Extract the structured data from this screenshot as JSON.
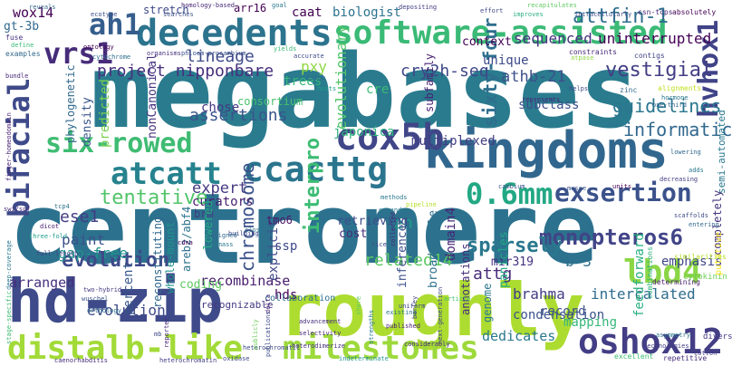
{
  "words": [
    {
      "text": "megabases",
      "color": "#2a7b8e"
    },
    {
      "text": "centromere",
      "color": "#2c728e"
    },
    {
      "text": "roughly",
      "color": "#addc30"
    },
    {
      "text": "hd-zip",
      "color": "#3e4a89"
    },
    {
      "text": "kingdoms",
      "color": "#31678e"
    },
    {
      "text": "decedents",
      "color": "#2c738e"
    },
    {
      "text": "software-assisted",
      "color": "#3aba76"
    },
    {
      "text": "six-rowed",
      "color": "#3fbc73"
    },
    {
      "text": "bifacial",
      "color": "#3e4a89"
    },
    {
      "text": "milestones",
      "color": "#9dd93b"
    },
    {
      "text": "distalb-like",
      "color": "#a2da37"
    },
    {
      "text": "oshox12",
      "color": "#433e85"
    },
    {
      "text": "cox5b",
      "color": "#404688"
    },
    {
      "text": "atcatt",
      "color": "#26828e"
    },
    {
      "text": "ccacttg",
      "color": "#2b758e"
    },
    {
      "text": "vrs1",
      "color": "#472c7a"
    },
    {
      "text": "ah1",
      "color": "#355e8d"
    },
    {
      "text": "lbd4",
      "color": "#8bd646"
    },
    {
      "text": "0.6mm",
      "color": "#22a884"
    },
    {
      "text": "exsertion",
      "color": "#3b528b"
    },
    {
      "text": "hvhox1",
      "color": "#404387"
    },
    {
      "text": "monopteros6",
      "color": "#414487"
    },
    {
      "text": "sparsely",
      "color": "#2a788e"
    },
    {
      "text": "tentative",
      "color": "#52c569"
    },
    {
      "text": "interpro",
      "color": "#3dbc74"
    },
    {
      "text": "evolution",
      "color": "#3e4989"
    },
    {
      "text": "sixty-four",
      "color": "#2e6f8e"
    },
    {
      "text": "chromosome",
      "color": "#3b528b"
    },
    {
      "text": "uninterrupted",
      "color": "#440154"
    },
    {
      "text": "sequenced",
      "color": "#46337f"
    },
    {
      "text": "attfin-1",
      "color": "#2e6d8e"
    },
    {
      "text": "lineage",
      "color": "#3e4a89"
    },
    {
      "text": "project nipponbare",
      "color": "#472f7d"
    },
    {
      "text": "cry2h-seq",
      "color": "#3f4788"
    },
    {
      "text": "athb-21",
      "color": "#3c508b"
    },
    {
      "text": "vestigial",
      "color": "#433e85"
    },
    {
      "text": "guidelines",
      "color": "#2a768e"
    },
    {
      "text": "informatics",
      "color": "#31688e"
    },
    {
      "text": "assertions",
      "color": "#39558c"
    },
    {
      "text": "expert",
      "color": "#443a83"
    },
    {
      "text": "ese1",
      "color": "#433d84"
    },
    {
      "text": "paint",
      "color": "#3b518b"
    },
    {
      "text": "gap-free",
      "color": "#20928c"
    },
    {
      "text": "related14",
      "color": "#5ec962"
    },
    {
      "text": "recombinase",
      "color": "#481d6f"
    },
    {
      "text": "arranged",
      "color": "#46307e"
    },
    {
      "text": "hds",
      "color": "#440154"
    },
    {
      "text": "attg",
      "color": "#472c7a"
    },
    {
      "text": "brahma",
      "color": "#433e85"
    },
    {
      "text": "intercalated",
      "color": "#2f6c8e"
    },
    {
      "text": "dedicates",
      "color": "#2a788e"
    },
    {
      "text": "condensation",
      "color": "#3b528b"
    },
    {
      "text": "emphasis",
      "color": "#404688"
    },
    {
      "text": "b-3",
      "color": "#2d708e"
    },
    {
      "text": "mir319",
      "color": "#46327e"
    },
    {
      "text": "mapping",
      "color": "#35b779"
    },
    {
      "text": "en",
      "color": "#1f9e89"
    },
    {
      "text": "domain4",
      "color": "#482576"
    },
    {
      "text": "annotations",
      "color": "#472d7b"
    },
    {
      "text": "feedforward",
      "color": "#29af7f"
    },
    {
      "text": "multiplexed",
      "color": "#433e85"
    },
    {
      "text": "evolutionary",
      "color": "#52c569"
    },
    {
      "text": "subfamily",
      "color": "#482173"
    },
    {
      "text": "subclass",
      "color": "#3b518b"
    },
    {
      "text": "unique",
      "color": "#3e4a89"
    },
    {
      "text": "trees",
      "color": "#35b779"
    },
    {
      "text": "pxy",
      "color": "#8fd744"
    },
    {
      "text": "cre",
      "color": "#3bbb75"
    },
    {
      "text": "japonica",
      "color": "#2eb37c"
    },
    {
      "text": "caat",
      "color": "#440154"
    },
    {
      "text": "biologist",
      "color": "#2c738e"
    },
    {
      "text": "context",
      "color": "#440154"
    },
    {
      "text": "wox14",
      "color": "#440154"
    },
    {
      "text": "gt-3b",
      "color": "#31688e"
    },
    {
      "text": "arr16",
      "color": "#440154"
    },
    {
      "text": "stretch",
      "color": "#3e4989"
    },
    {
      "text": "chose",
      "color": "#443983"
    },
    {
      "text": "nonCanonical",
      "color": "#46337f"
    },
    {
      "text": "density",
      "color": "#39558c"
    },
    {
      "text": "predicted",
      "color": "#7ad151"
    },
    {
      "text": "phylogenetic",
      "color": "#31688e"
    },
    {
      "text": "consortium",
      "color": "#48c16e"
    },
    {
      "text": "curators",
      "color": "#481f70"
    },
    {
      "text": "brm",
      "color": "#443a83"
    },
    {
      "text": "coding",
      "color": "#5ec962"
    },
    {
      "text": "reconstituting",
      "color": "#31688e"
    },
    {
      "text": "whole-mount",
      "color": "#20928c"
    },
    {
      "text": "areb2/abf4",
      "color": "#2c728e"
    },
    {
      "text": "lowered",
      "color": "#25ac82"
    },
    {
      "text": "percent",
      "color": "#38588c"
    },
    {
      "text": "evolution",
      "color": "#3e4a89"
    },
    {
      "text": "explicit",
      "color": "#3f4889"
    },
    {
      "text": "ssp",
      "color": "#3e4a89"
    },
    {
      "text": "cost",
      "color": "#472d7b"
    },
    {
      "text": "broad-scale",
      "color": "#2d718e"
    },
    {
      "text": "panicles",
      "color": "#22a884"
    },
    {
      "text": "genome",
      "color": "#2a788e"
    },
    {
      "text": "inferences",
      "color": "#3c508b"
    },
    {
      "text": "record",
      "color": "#3b518b"
    },
    {
      "text": "retrieving",
      "color": "#3e4c8a"
    },
    {
      "text": "tmo6",
      "color": "#481567"
    },
    {
      "text": "collaboration",
      "color": "#2d708e"
    },
    {
      "text": "recognizable",
      "color": "#453882"
    },
    {
      "text": "completely",
      "color": "#46337f"
    },
    {
      "text": "semi-automated",
      "color": "#2a788e"
    },
    {
      "text": "cytokinin",
      "color": "#6ece58"
    },
    {
      "text": "putative",
      "color": "#fde725"
    },
    {
      "text": "diverse",
      "color": "#443983"
    },
    {
      "text": "repetitive",
      "color": "#472a7a"
    },
    {
      "text": "excellent",
      "color": "#3fbc73"
    },
    {
      "text": "technologies",
      "color": "#433e85"
    },
    {
      "text": "determining",
      "color": "#481b6d"
    },
    {
      "text": "combinations",
      "color": "#2db27d"
    },
    {
      "text": "similarities",
      "color": "#b5de2b"
    },
    {
      "text": "absolutely",
      "color": "#440154"
    },
    {
      "text": "csn-tcps",
      "color": "#482576"
    },
    {
      "text": "alignments",
      "color": "#c2df23"
    },
    {
      "text": "zinc",
      "color": "#31688e"
    },
    {
      "text": "intracellularly",
      "color": "#3e4c8a"
    },
    {
      "text": "atpase",
      "color": "#90d743"
    },
    {
      "text": "contigs",
      "color": "#414487"
    },
    {
      "text": "constraints",
      "color": "#482878"
    },
    {
      "text": "helps",
      "color": "#3e4989"
    },
    {
      "text": "represents",
      "color": "#482475"
    },
    {
      "text": "improves",
      "color": "#29af7f"
    },
    {
      "text": "effort",
      "color": "#3e4989"
    },
    {
      "text": "recapitulates",
      "color": "#5ec962"
    },
    {
      "text": "ecotype",
      "color": "#3c4f8a"
    },
    {
      "text": "searches",
      "color": "#3b528b"
    },
    {
      "text": "homology-based",
      "color": "#482878"
    },
    {
      "text": "goal",
      "color": "#2a788e"
    },
    {
      "text": "depositing",
      "color": "#433e85"
    },
    {
      "text": "fuse",
      "color": "#46337f"
    },
    {
      "text": "define",
      "color": "#3aba76"
    },
    {
      "text": "cytochrome",
      "color": "#2d708e"
    },
    {
      "text": "ontology",
      "color": "#440154"
    },
    {
      "text": "organisms",
      "color": "#472f7d"
    },
    {
      "text": "phloem-procambium",
      "color": "#3b528b"
    },
    {
      "text": "yields",
      "color": "#3aba76"
    },
    {
      "text": "accurate",
      "color": "#3e4a89"
    },
    {
      "text": "bundle",
      "color": "#482878"
    },
    {
      "text": "examples",
      "color": "#31688e"
    },
    {
      "text": "issue",
      "color": "#31688e"
    },
    {
      "text": "finger-homeodomain",
      "color": "#482475"
    },
    {
      "text": "swi/snf",
      "color": "#472d7b"
    },
    {
      "text": "tcp4",
      "color": "#2c728e"
    },
    {
      "text": "dicot",
      "color": "#481a6c"
    },
    {
      "text": "three-fold",
      "color": "#1f9e89"
    },
    {
      "text": "full-length",
      "color": "#433e85"
    },
    {
      "text": "deep-coverage",
      "color": "#2a788e"
    },
    {
      "text": "stage-specific",
      "color": "#3fbc73"
    },
    {
      "text": "wuschel",
      "color": "#3b528b"
    },
    {
      "text": "two-hybrid",
      "color": "#443983"
    },
    {
      "text": "orthology",
      "color": "#2d708e"
    },
    {
      "text": "caenorhabditis",
      "color": "#472c7a"
    },
    {
      "text": "heterochromatin",
      "color": "#433e85"
    },
    {
      "text": "heterochromatic",
      "color": "#3e4a89"
    },
    {
      "text": "indeterminate",
      "color": "#20928c"
    },
    {
      "text": "published",
      "color": "#481f70"
    },
    {
      "text": "considerably",
      "color": "#482878"
    },
    {
      "text": "selectivity",
      "color": "#482878"
    },
    {
      "text": "advancement",
      "color": "#472f7d"
    },
    {
      "text": "existing",
      "color": "#2a788e"
    },
    {
      "text": "uniform",
      "color": "#3e4989"
    },
    {
      "text": "article",
      "color": "#48c16e"
    },
    {
      "text": "next-generation",
      "color": "#3e4989"
    },
    {
      "text": "barley",
      "color": "#433e85"
    },
    {
      "text": "delta",
      "color": "#482475"
    },
    {
      "text": "share",
      "color": "#5ec962"
    },
    {
      "text": "closest",
      "color": "#2c728e"
    },
    {
      "text": "building",
      "color": "#3e4a89"
    },
    {
      "text": "rice",
      "color": "#3e4989"
    },
    {
      "text": "collected",
      "color": "#482878"
    },
    {
      "text": "expands",
      "color": "#2a788e"
    },
    {
      "text": "pipeline",
      "color": "#b5de2b"
    },
    {
      "text": "methods",
      "color": "#2a788e"
    },
    {
      "text": "cambium",
      "color": "#3b528b"
    },
    {
      "text": "masse",
      "color": "#3b528b"
    },
    {
      "text": "units",
      "color": "#440154"
    },
    {
      "text": "biomass",
      "color": "#2a788e"
    },
    {
      "text": "assigned",
      "color": "#31688e"
    },
    {
      "text": "cdna",
      "color": "#440154"
    },
    {
      "text": "mb",
      "color": "#3e4a89"
    },
    {
      "text": "reporter",
      "color": "#482878"
    },
    {
      "text": "publicly",
      "color": "#6ece58"
    },
    {
      "text": "publications",
      "color": "#3e4a89"
    },
    {
      "text": "strengths",
      "color": "#2a788e"
    },
    {
      "text": "heterodimerize",
      "color": "#472f7d"
    },
    {
      "text": "oxidase",
      "color": "#3e4a89"
    },
    {
      "text": "reveals",
      "color": "#31688e"
    },
    {
      "text": "one-third",
      "color": "#31688e"
    },
    {
      "text": "hormone",
      "color": "#2a788e"
    },
    {
      "text": "lowering",
      "color": "#31688e"
    },
    {
      "text": "hosts",
      "color": "#1f9e89"
    },
    {
      "text": "nvmia",
      "color": "#2c728e"
    },
    {
      "text": "adds",
      "color": "#2a788e"
    },
    {
      "text": "decreasing",
      "color": "#433e85"
    },
    {
      "text": "scaffolds",
      "color": "#3e4a89"
    },
    {
      "text": "entering",
      "color": "#31688e"
    },
    {
      "text": "asymmetry",
      "color": "#2a788e"
    },
    {
      "text": "cotton",
      "color": "#433e85"
    },
    {
      "text": "opposite",
      "color": "#2a788e"
    },
    {
      "text": "history",
      "color": "#2a788e"
    }
  ]
}
